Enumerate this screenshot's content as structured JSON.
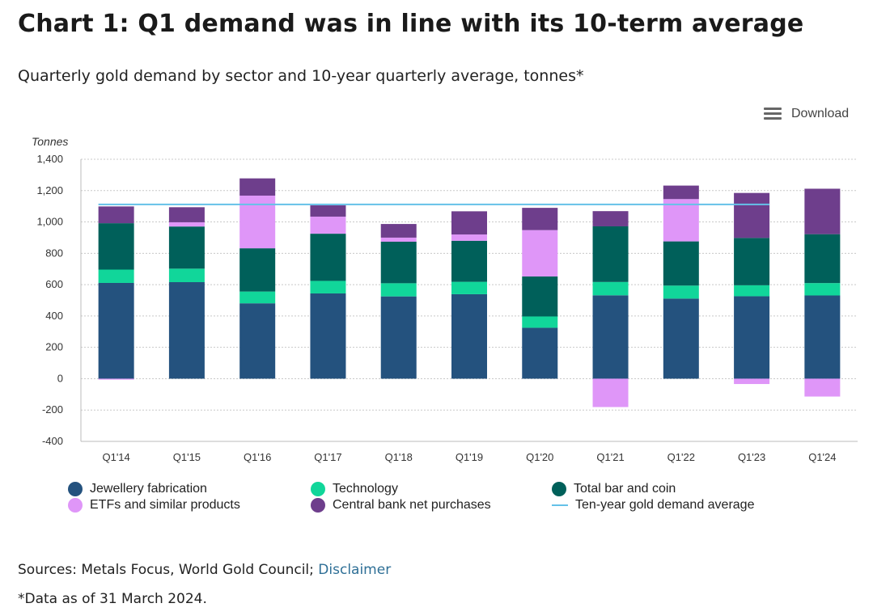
{
  "title": "Chart 1: Q1 demand was in line with its 10-term average",
  "subtitle": "Quarterly gold demand by sector and 10-year quarterly average, tonnes*",
  "download": {
    "label": "Download",
    "icon": "menu-icon"
  },
  "sources": {
    "text": "Sources: Metals Focus, World Gold Council; ",
    "link": "Disclaimer"
  },
  "footnote": "*Data as of 31 March 2024.",
  "chart_data": {
    "type": "bar",
    "stacked": true,
    "ylabel": "Tonnes",
    "ylim": [
      -400,
      1400
    ],
    "yticks": [
      -400,
      -200,
      0,
      200,
      400,
      600,
      800,
      1000,
      1200,
      1400
    ],
    "ytick_labels": [
      "-400",
      "-200",
      "0",
      "200",
      "400",
      "600",
      "800",
      "1,000",
      "1,200",
      "1,400"
    ],
    "grid": true,
    "categories": [
      "Q1'14",
      "Q1'15",
      "Q1'16",
      "Q1'17",
      "Q1'18",
      "Q1'19",
      "Q1'20",
      "Q1'21",
      "Q1'22",
      "Q1'23",
      "Q1'24"
    ],
    "series": [
      {
        "name": "Jewellery fabrication",
        "color": "#24527e",
        "values": [
          611,
          616,
          481,
          544,
          525,
          539,
          325,
          532,
          511,
          526,
          531
        ]
      },
      {
        "name": "Technology",
        "color": "#11d69a",
        "values": [
          85,
          86,
          75,
          80,
          84,
          79,
          72,
          85,
          83,
          70,
          79
        ]
      },
      {
        "name": "Total bar and coin",
        "color": "#00605a",
        "values": [
          296,
          269,
          276,
          301,
          265,
          262,
          255,
          355,
          282,
          302,
          312
        ]
      },
      {
        "name": "ETFs and similar products",
        "color": "#df96f8",
        "values": [
          -6,
          27,
          336,
          109,
          26,
          40,
          296,
          -181,
          270,
          -34,
          -114
        ]
      },
      {
        "name": "Central bank net purchases",
        "color": "#6e3e8c",
        "values": [
          107,
          96,
          110,
          72,
          87,
          148,
          142,
          97,
          86,
          287,
          290
        ]
      }
    ],
    "line": {
      "name": "Ten-year gold demand average",
      "color": "#64c1e8",
      "value": 1112
    },
    "legend_position": "bottom"
  }
}
